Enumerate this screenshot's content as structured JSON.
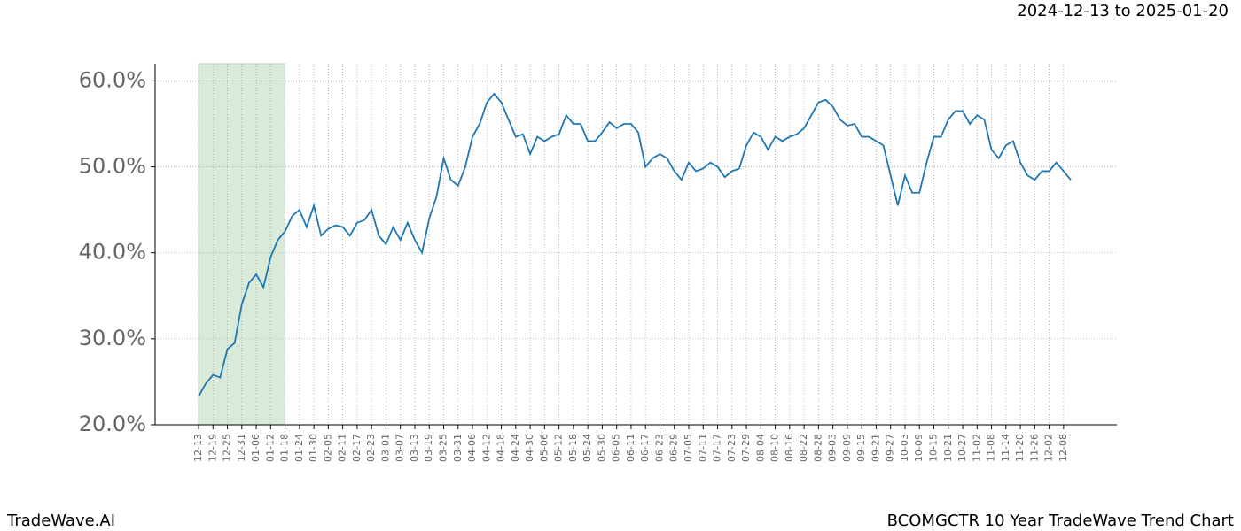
{
  "header": {
    "date_range": "2024-12-13 to 2025-01-20"
  },
  "footer": {
    "brand": "TradeWave.AI",
    "chart_name": "BCOMGCTR 10 Year TradeWave Trend Chart"
  },
  "chart_data": {
    "type": "line",
    "x": [
      "12-13",
      "12-16",
      "12-19",
      "12-22",
      "12-25",
      "12-28",
      "12-31",
      "01-03",
      "01-06",
      "01-09",
      "01-12",
      "01-15",
      "01-18",
      "01-21",
      "01-24",
      "01-27",
      "01-30",
      "02-02",
      "02-05",
      "02-08",
      "02-11",
      "02-14",
      "02-17",
      "02-20",
      "02-23",
      "02-26",
      "03-01",
      "03-04",
      "03-07",
      "03-10",
      "03-13",
      "03-16",
      "03-19",
      "03-22",
      "03-25",
      "03-28",
      "03-31",
      "04-03",
      "04-06",
      "04-09",
      "04-12",
      "04-15",
      "04-18",
      "04-21",
      "04-24",
      "04-27",
      "04-30",
      "05-03",
      "05-06",
      "05-09",
      "05-12",
      "05-15",
      "05-18",
      "05-21",
      "05-24",
      "05-27",
      "05-30",
      "06-02",
      "06-05",
      "06-08",
      "06-11",
      "06-14",
      "06-17",
      "06-20",
      "06-23",
      "06-26",
      "06-29",
      "07-02",
      "07-05",
      "07-08",
      "07-11",
      "07-14",
      "07-17",
      "07-20",
      "07-23",
      "07-26",
      "07-29",
      "08-01",
      "08-04",
      "08-07",
      "08-10",
      "08-13",
      "08-16",
      "08-19",
      "08-22",
      "08-25",
      "08-28",
      "08-31",
      "09-03",
      "09-06",
      "09-09",
      "09-12",
      "09-15",
      "09-18",
      "09-21",
      "09-24",
      "09-27",
      "09-30",
      "10-03",
      "10-06",
      "10-09",
      "10-12",
      "10-15",
      "10-18",
      "10-21",
      "10-24",
      "10-27",
      "10-30",
      "11-02",
      "11-05",
      "11-08",
      "11-11",
      "11-14",
      "11-17",
      "11-20",
      "11-23",
      "11-26",
      "11-29",
      "12-02",
      "12-05",
      "12-08",
      "12-11"
    ],
    "series": [
      {
        "color": "#1f77b4",
        "values": [
          23.3,
          24.8,
          25.8,
          25.5,
          28.8,
          29.5,
          34.0,
          36.5,
          37.5,
          36.0,
          39.5,
          41.5,
          42.5,
          44.3,
          45.0,
          43.0,
          45.5,
          42.0,
          42.8,
          43.2,
          43.0,
          42.0,
          43.5,
          43.8,
          45.0,
          42.0,
          41.0,
          43.0,
          41.5,
          43.5,
          41.5,
          40.0,
          44.0,
          46.5,
          51.0,
          48.5,
          47.8,
          50.0,
          53.5,
          55.0,
          57.5,
          58.5,
          57.5,
          55.5,
          53.5,
          53.8,
          51.5,
          53.5,
          53.0,
          53.5,
          53.8,
          56.0,
          55.0,
          55.0,
          53.0,
          53.0,
          54.0,
          55.2,
          54.5,
          55.0,
          55.0,
          54.0,
          50.0,
          51.0,
          51.5,
          51.0,
          49.5,
          48.5,
          50.5,
          49.5,
          49.8,
          50.5,
          50.0,
          48.8,
          49.5,
          49.8,
          52.5,
          54.0,
          53.5,
          52.0,
          53.5,
          53.0,
          53.5,
          53.8,
          54.5,
          56.0,
          57.5,
          57.8,
          57.0,
          55.5,
          54.8,
          55.0,
          53.5,
          53.5,
          53.0,
          52.5,
          49.0,
          45.5,
          49.0,
          47.0,
          47.0,
          50.5,
          53.5,
          53.5,
          55.5,
          56.5,
          56.5,
          55.0,
          56.0,
          55.5,
          52.0,
          51.0,
          52.5,
          53.0,
          50.5,
          49.0,
          48.5,
          49.5,
          49.5,
          50.5,
          49.5,
          48.5
        ]
      }
    ],
    "xticks": [
      "12-13",
      "12-19",
      "12-25",
      "12-31",
      "01-06",
      "01-12",
      "01-18",
      "01-24",
      "01-30",
      "02-05",
      "02-11",
      "02-17",
      "02-23",
      "03-01",
      "03-07",
      "03-13",
      "03-19",
      "03-25",
      "03-31",
      "04-06",
      "04-12",
      "04-18",
      "04-24",
      "04-30",
      "05-06",
      "05-12",
      "05-18",
      "05-24",
      "05-30",
      "06-05",
      "06-11",
      "06-17",
      "06-23",
      "06-29",
      "07-05",
      "07-11",
      "07-17",
      "07-23",
      "07-29",
      "08-04",
      "08-10",
      "08-16",
      "08-22",
      "08-28",
      "09-03",
      "09-09",
      "09-15",
      "09-21",
      "09-27",
      "10-03",
      "10-09",
      "10-15",
      "10-21",
      "10-27",
      "11-02",
      "11-08",
      "11-14",
      "11-20",
      "11-26",
      "12-02",
      "12-08"
    ],
    "ylim": [
      20,
      62
    ],
    "yticks": [
      {
        "value": 20,
        "label": "20.0%"
      },
      {
        "value": 30,
        "label": "30.0%"
      },
      {
        "value": 40,
        "label": "40.0%"
      },
      {
        "value": 50,
        "label": "50.0%"
      },
      {
        "value": 60,
        "label": "60.0%"
      }
    ],
    "grid": true,
    "highlight": {
      "start": "12-13",
      "end": "01-18",
      "color": "#d9ead9"
    }
  }
}
